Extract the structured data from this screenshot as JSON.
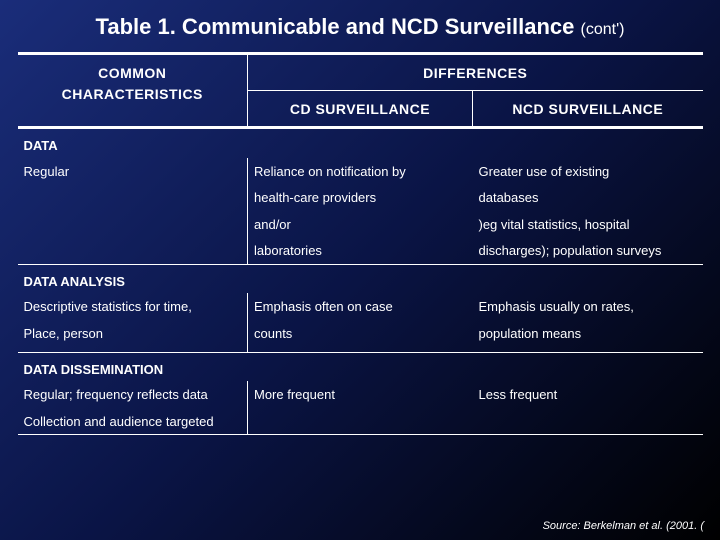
{
  "title": "Table 1. Communicable and NCD Surveillance",
  "title_cont": "(cont')",
  "headers": {
    "common": "COMMON",
    "characteristics": "CHARACTERISTICS",
    "differences": "DIFFERENCES",
    "cd": "CD SURVEILLANCE",
    "ncd": "NCD SURVEILLANCE"
  },
  "sections": {
    "data": {
      "label": "DATA",
      "row1": {
        "c1": "Regular",
        "c2": "Reliance on notification by",
        "c3": "Greater use of existing"
      },
      "row2": {
        "c1": "",
        "c2": "health-care providers",
        "c3": "databases"
      },
      "row3": {
        "c1": "",
        "c2": "and/or",
        "c3": ")eg vital statistics, hospital"
      },
      "row4": {
        "c1": "",
        "c2": "laboratories",
        "c3": "discharges); population surveys"
      }
    },
    "analysis": {
      "label": "DATA ANALYSIS",
      "row1": {
        "c1": "Descriptive statistics for time,",
        "c2": "Emphasis often on case",
        "c3": "Emphasis usually on rates,"
      },
      "row2": {
        "c1": "Place, person",
        "c2": "counts",
        "c3": "population means"
      }
    },
    "dissemination": {
      "label": "DATA DISSEMINATION",
      "row1": {
        "c1": "Regular; frequency reflects data",
        "c2": "More frequent",
        "c3": "Less frequent"
      },
      "row2": {
        "c1": "Collection and audience targeted",
        "c2": "",
        "c3": ""
      }
    }
  },
  "source": "Source: Berkelman et al. (2001. ("
}
